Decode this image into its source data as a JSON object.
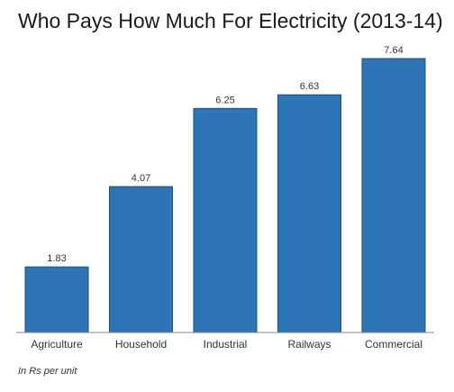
{
  "chart_data": {
    "type": "bar",
    "title": "Who Pays How Much For Electricity (2013-14)",
    "categories": [
      "Agriculture",
      "Household",
      "Industrial",
      "Railways",
      "Commercial"
    ],
    "values": [
      1.83,
      4.07,
      6.25,
      6.63,
      7.64
    ],
    "value_labels": [
      "1.83",
      "4.07",
      "6.25",
      "6.63",
      "7.64"
    ],
    "ylim": [
      0,
      7.64
    ],
    "xlabel": "",
    "ylabel": "",
    "note": "In Rs per unit",
    "grid": false,
    "legend": "none",
    "bar_color": "#2e75b6",
    "bar_border_color": "#1c4f82",
    "axis_color": "#888888"
  }
}
